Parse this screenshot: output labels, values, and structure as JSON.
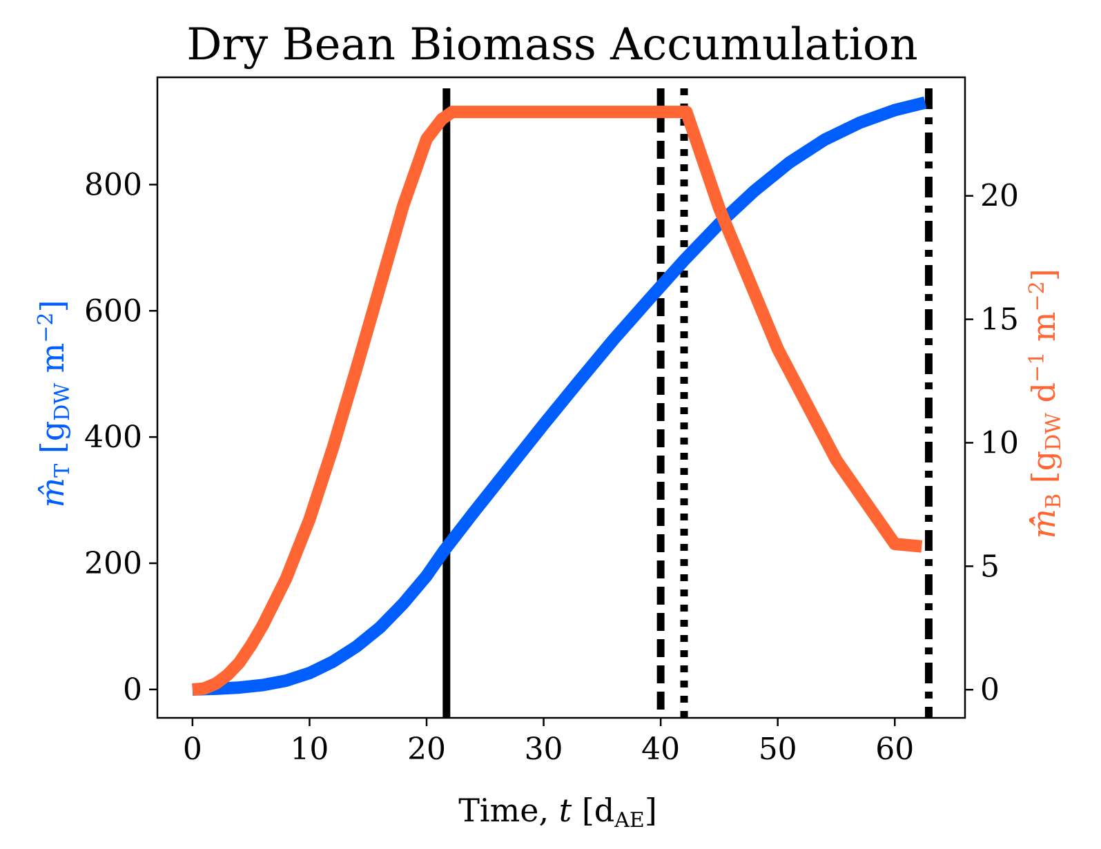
{
  "chart_data": {
    "type": "line",
    "title": "Dry Bean Biomass Accumulation",
    "xlabel": "Time, t [d_AE]",
    "ylabel_left": "m̂_T [g_DW m⁻²]",
    "ylabel_right": "m̂̇_B [g_DW d⁻¹ m⁻²]",
    "xlim": [
      -3.0,
      66.0
    ],
    "ylim_left": [
      -45,
      970
    ],
    "ylim_right": [
      -1.14,
      24.8
    ],
    "xticks": [
      "0",
      "10",
      "20",
      "30",
      "40",
      "50",
      "60"
    ],
    "yticks_left": [
      "0",
      "200",
      "400",
      "600",
      "800"
    ],
    "yticks_right": [
      "0",
      "5",
      "10",
      "15",
      "20"
    ],
    "grid": false,
    "colors": {
      "left_series": "#005eff",
      "right_series": "#ff6633",
      "vlines": "#000000"
    },
    "series": [
      {
        "axis": "left",
        "x": [
          0,
          2,
          4,
          6,
          8,
          10,
          12,
          14,
          16,
          18,
          20,
          21.5,
          24,
          27,
          30,
          33,
          36,
          39,
          42,
          45,
          48,
          51,
          54,
          57,
          60,
          62.6
        ],
        "values": [
          0,
          1,
          3,
          7,
          14,
          26,
          44,
          68,
          98,
          136,
          180,
          220,
          280,
          350,
          420,
          488,
          555,
          618,
          680,
          738,
          790,
          835,
          871,
          898,
          918,
          930
        ]
      },
      {
        "axis": "right",
        "x": [
          0,
          1,
          2,
          3,
          4,
          5,
          6,
          8,
          10,
          12,
          14,
          16,
          18,
          20,
          21.3,
          22.2,
          42.2,
          45,
          50,
          55,
          60,
          62.3
        ],
        "values": [
          0,
          0.05,
          0.25,
          0.6,
          1.1,
          1.8,
          2.6,
          4.5,
          6.9,
          9.8,
          13.0,
          16.3,
          19.6,
          22.3,
          23.1,
          23.4,
          23.4,
          19.5,
          13.8,
          9.3,
          5.9,
          5.8
        ]
      }
    ],
    "vlines": [
      {
        "x": 21.7,
        "style": "solid"
      },
      {
        "x": 40.0,
        "style": "dashed"
      },
      {
        "x": 42.0,
        "style": "dotted"
      },
      {
        "x": 62.9,
        "style": "dashdot"
      }
    ]
  }
}
